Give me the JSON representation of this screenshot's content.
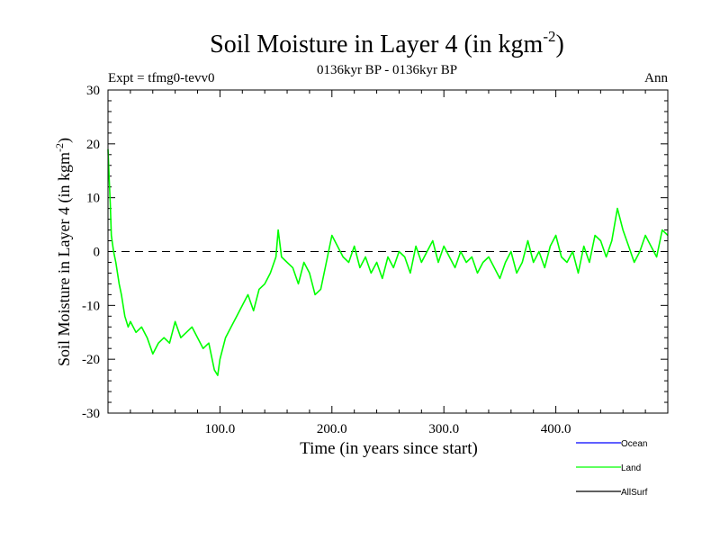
{
  "chart_data": {
    "type": "line",
    "title": "Soil Moisture in Layer 4 (in kgm",
    "title_sup": "-2",
    "title_close": ")",
    "subtitle_left": "Expt = tfmg0-tevv0",
    "subtitle_center": "0136kyr BP - 0136kyr BP",
    "subtitle_right": "Ann",
    "xlabel": "Time (in years since start)",
    "ylabel": "Soil Moisture in Layer 4 (in kgm",
    "ylabel_sup": "-2",
    "ylabel_close": ")",
    "xlim": [
      0,
      500
    ],
    "ylim": [
      -30,
      30
    ],
    "x_ticks": [
      {
        "value": 100,
        "label": "100.0"
      },
      {
        "value": 200,
        "label": "200.0"
      },
      {
        "value": 300,
        "label": "300.0"
      },
      {
        "value": 400,
        "label": "400.0"
      }
    ],
    "y_ticks": [
      {
        "value": 30,
        "label": "30"
      },
      {
        "value": 20,
        "label": "20"
      },
      {
        "value": 10,
        "label": "10"
      },
      {
        "value": 0,
        "label": "0"
      },
      {
        "value": -10,
        "label": "-10"
      },
      {
        "value": -20,
        "label": "-20"
      },
      {
        "value": -30,
        "label": "-30"
      }
    ],
    "zero_line": {
      "value": 0,
      "style": "dashed"
    },
    "legend_position": "bottom-right",
    "legend": [
      {
        "name": "Ocean",
        "color": "#0000ff"
      },
      {
        "name": "Land",
        "color": "#00ff00"
      },
      {
        "name": "AllSurf",
        "color": "#000000"
      }
    ],
    "series": [
      {
        "name": "Land",
        "color": "#00ff00",
        "x": [
          0,
          1,
          2,
          3,
          5,
          7,
          10,
          12,
          15,
          18,
          20,
          25,
          30,
          35,
          40,
          45,
          50,
          55,
          60,
          65,
          70,
          75,
          80,
          85,
          90,
          95,
          98,
          100,
          105,
          110,
          115,
          120,
          125,
          130,
          135,
          140,
          145,
          150,
          152,
          155,
          160,
          165,
          170,
          175,
          180,
          185,
          190,
          195,
          200,
          205,
          210,
          215,
          220,
          225,
          230,
          235,
          240,
          245,
          250,
          255,
          260,
          265,
          270,
          275,
          280,
          285,
          290,
          295,
          300,
          305,
          310,
          315,
          320,
          325,
          330,
          335,
          340,
          345,
          350,
          355,
          360,
          365,
          370,
          375,
          380,
          385,
          390,
          395,
          400,
          405,
          410,
          415,
          420,
          425,
          430,
          435,
          440,
          445,
          450,
          455,
          460,
          465,
          470,
          475,
          480,
          485,
          490,
          495,
          500
        ],
        "values": [
          19,
          14,
          9,
          3,
          0,
          -2,
          -6,
          -8,
          -12,
          -14,
          -13,
          -15,
          -14,
          -16,
          -19,
          -17,
          -16,
          -17,
          -13,
          -16,
          -15,
          -14,
          -16,
          -18,
          -17,
          -22,
          -23,
          -20,
          -16,
          -14,
          -12,
          -10,
          -8,
          -11,
          -7,
          -6,
          -4,
          -1,
          4,
          -1,
          -2,
          -3,
          -6,
          -2,
          -4,
          -8,
          -7,
          -2,
          3,
          1,
          -1,
          -2,
          1,
          -3,
          -1,
          -4,
          -2,
          -5,
          -1,
          -3,
          0,
          -1,
          -4,
          1,
          -2,
          0,
          2,
          -2,
          1,
          -1,
          -3,
          0,
          -2,
          -1,
          -4,
          -2,
          -1,
          -3,
          -5,
          -2,
          0,
          -4,
          -2,
          2,
          -2,
          0,
          -3,
          1,
          3,
          -1,
          -2,
          0,
          -4,
          1,
          -2,
          3,
          2,
          -1,
          2,
          8,
          4,
          1,
          -2,
          0,
          3,
          1,
          -1,
          4,
          3
        ]
      }
    ]
  }
}
